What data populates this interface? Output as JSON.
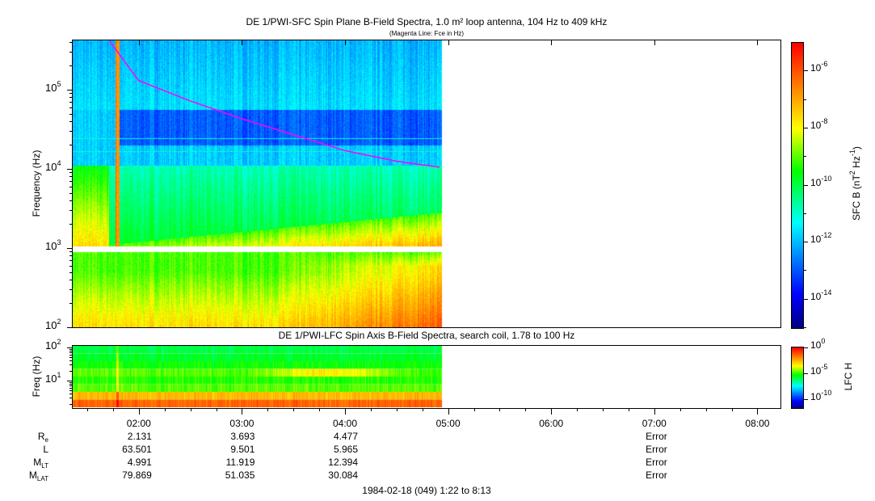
{
  "chart_data": [
    {
      "type": "heatmap",
      "title": "DE 1/PWI-SFC  Spin Plane B-Field Spectra, 1.0 m² loop antenna, 104 Hz to 409 kHz",
      "subtitle": "(Magenta Line: Fce in Hz)",
      "ylabel": "Frequency (Hz)",
      "yscale": "log",
      "ylim": [
        100,
        409000
      ],
      "yticks": [
        {
          "base": "10",
          "exp": "2",
          "v": 100
        },
        {
          "base": "10",
          "exp": "3",
          "v": 1000
        },
        {
          "base": "10",
          "exp": "4",
          "v": 10000
        },
        {
          "base": "10",
          "exp": "5",
          "v": 100000
        }
      ],
      "colorbar": {
        "label": "SFC B (nT",
        "label_exp1": "2",
        "label_mid": " Hz",
        "label_exp2": "-1",
        "label_end": ")",
        "scale": "log",
        "range_exp": [
          -15,
          -5
        ],
        "ticks": [
          {
            "base": "10",
            "exp": "-6",
            "v": -6
          },
          {
            "base": "10",
            "exp": "-8",
            "v": -8
          },
          {
            "base": "10",
            "exp": "-10",
            "v": -10
          },
          {
            "base": "10",
            "exp": "-12",
            "v": -12
          },
          {
            "base": "10",
            "exp": "-14",
            "v": -14
          }
        ],
        "colormap": [
          "#00007f",
          "#0000ff",
          "#00ffff",
          "#00ff00",
          "#ffff00",
          "#ff7f00",
          "#ff0000"
        ]
      },
      "data_extent_time": [
        "01:22",
        "04:56"
      ],
      "fce_line": {
        "color": "#ff00ff",
        "series": [
          {
            "t": "01:43",
            "f": 409000
          },
          {
            "t": "02:00",
            "f": 130000
          },
          {
            "t": "02:30",
            "f": 72000
          },
          {
            "t": "03:00",
            "f": 43000
          },
          {
            "t": "03:30",
            "f": 27000
          },
          {
            "t": "04:00",
            "f": 17000
          },
          {
            "t": "04:30",
            "f": 12500
          },
          {
            "t": "04:55",
            "f": 10500
          }
        ]
      }
    },
    {
      "type": "heatmap",
      "title": "DE 1/PWI-LFC  Spin Axis B-Field Spectra, search coil, 1.78 to 100 Hz",
      "ylabel": "Freq (Hz)",
      "yscale": "log",
      "ylim": [
        1.78,
        100
      ],
      "yticks": [
        {
          "base": "10",
          "exp": "2",
          "v": 100
        },
        {
          "base": "10",
          "exp": "1",
          "v": 10
        }
      ],
      "colorbar": {
        "label": "LFC H",
        "scale": "log",
        "range_exp": [
          -12,
          0
        ],
        "ticks": [
          {
            "base": "10",
            "exp": "0",
            "v": 0
          },
          {
            "base": "10",
            "exp": "-5",
            "v": -5
          },
          {
            "base": "10",
            "exp": "-10",
            "v": -10
          }
        ]
      },
      "data_extent_time": [
        "01:22",
        "04:56"
      ]
    }
  ],
  "time_axis": {
    "range": [
      "01:22",
      "08:13"
    ],
    "ticks": [
      "02:00",
      "03:00",
      "04:00",
      "05:00",
      "06:00",
      "07:00",
      "08:00"
    ]
  },
  "ephemeris": {
    "rows": [
      {
        "label": "R",
        "sub": "e",
        "values": [
          "2.131",
          "3.693",
          "4.477",
          "",
          "",
          "Error",
          ""
        ]
      },
      {
        "label": "L",
        "sub": "",
        "values": [
          "63.501",
          "9.501",
          "5.965",
          "",
          "",
          "Error",
          ""
        ]
      },
      {
        "label": "M",
        "sub": "LT",
        "values": [
          "4.991",
          "11.919",
          "12.394",
          "",
          "",
          "Error",
          ""
        ]
      },
      {
        "label": "M",
        "sub": "LAT",
        "values": [
          "79.869",
          "51.035",
          "30.084",
          "",
          "",
          "Error",
          ""
        ]
      }
    ]
  },
  "footer": "1984-02-18 (049) 1:22 to 8:13"
}
